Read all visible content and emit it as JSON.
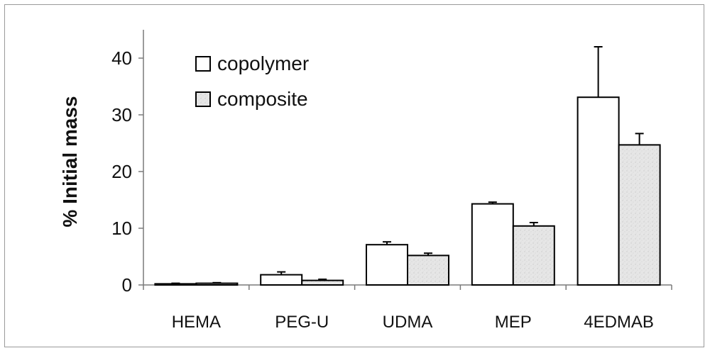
{
  "chart_data": {
    "type": "bar",
    "title": "",
    "xlabel": "",
    "ylabel": "% Initial mass",
    "ylim": [
      0,
      45
    ],
    "yticks": [
      0,
      10,
      20,
      30,
      40
    ],
    "categories": [
      "HEMA",
      "PEG-U",
      "UDMA",
      "MEP",
      "4EDMAB"
    ],
    "series": [
      {
        "name": "copolymer",
        "values": [
          0.2,
          1.8,
          7.1,
          14.3,
          33.1
        ],
        "errors": [
          0.1,
          0.5,
          0.5,
          0.3,
          8.9
        ],
        "fill": "#ffffff"
      },
      {
        "name": "composite",
        "values": [
          0.3,
          0.8,
          5.2,
          10.4,
          24.7
        ],
        "errors": [
          0.1,
          0.2,
          0.4,
          0.6,
          2.0
        ],
        "fill": "#e4e4e4"
      }
    ],
    "grid": false,
    "legend_position": "top-left"
  }
}
